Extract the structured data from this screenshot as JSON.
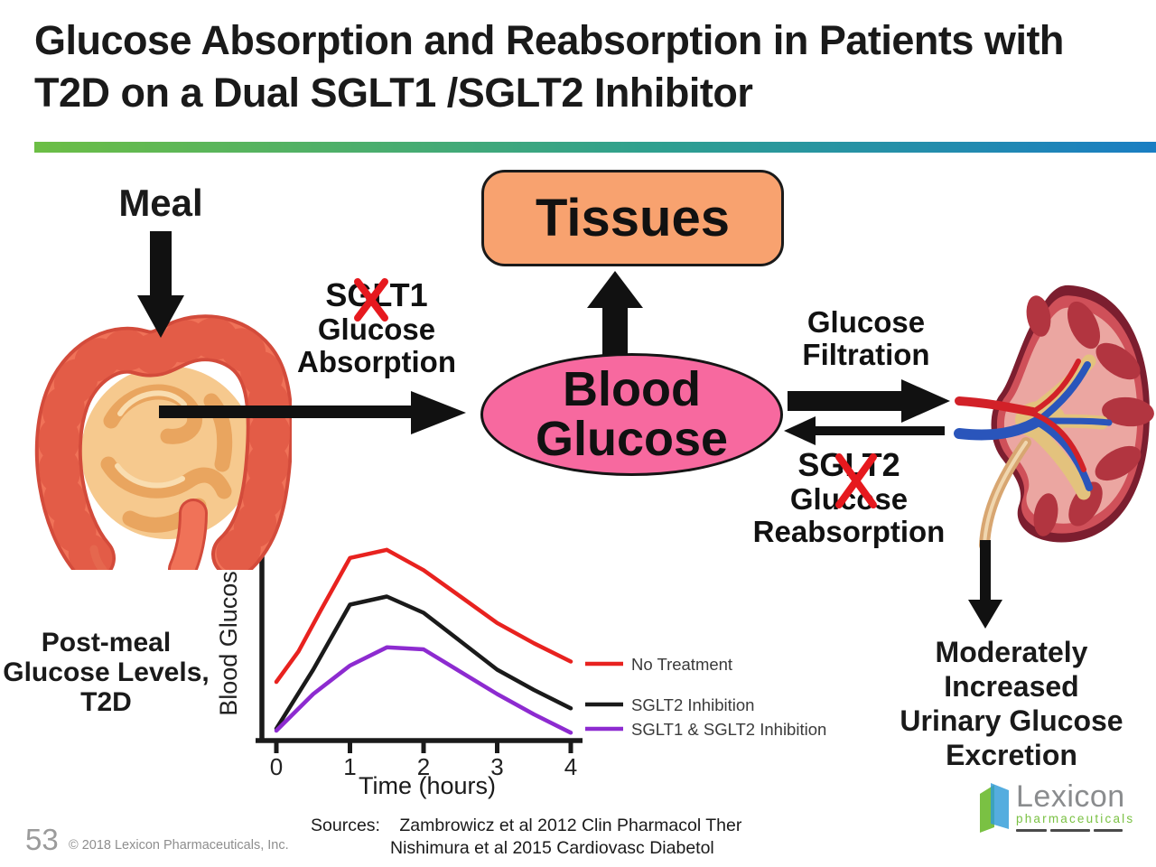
{
  "slide": {
    "title_line1": "Glucose Absorption and Reabsorption in Patients with",
    "title_line2": "T2D on a Dual SGLT1 /SGLT2 Inhibitor"
  },
  "diagram": {
    "meal": "Meal",
    "tissues": "Tissues",
    "blood_glucose_line1": "Blood",
    "blood_glucose_line2": "Glucose",
    "sglt1": {
      "name": "SGLT1",
      "line2": "Glucose",
      "line3": "Absorption",
      "crossed_out": true
    },
    "filtration": {
      "line1": "Glucose",
      "line2": "Filtration"
    },
    "sglt2": {
      "name": "SGLT2",
      "line2": "Glucose",
      "line3": "Reabsorption",
      "crossed_out": true
    },
    "outcome": {
      "line1": "Moderately",
      "line2": "Increased",
      "line3": "Urinary Glucose",
      "line4": "Excretion"
    }
  },
  "chart_caption": {
    "line1": "Post-meal",
    "line2": "Glucose Levels,",
    "line3": "T2D"
  },
  "chart_data": {
    "type": "line",
    "title": "Post-meal Glucose Levels, T2D",
    "xlabel": "Time (hours)",
    "ylabel": "Blood Glucose",
    "x_ticks": [
      0,
      1,
      2,
      3,
      4
    ],
    "xlim": [
      0,
      4
    ],
    "ylim": [
      0,
      100
    ],
    "y_scale_note": "y axis unlabeled (relative blood glucose)",
    "grid": false,
    "legend_position": "right of plot",
    "series": [
      {
        "name": "No Treatment",
        "color": "#e8221f",
        "x": [
          0,
          0.3,
          0.6,
          1,
          1.5,
          2,
          2.5,
          3,
          3.5,
          4
        ],
        "y": [
          28,
          43,
          63,
          89,
          93,
          83,
          70,
          57,
          47,
          38
        ]
      },
      {
        "name": "SGLT2 Inhibition",
        "color": "#1a1a1a",
        "x": [
          0,
          0.5,
          1,
          1.5,
          2,
          2.5,
          3,
          3.5,
          4
        ],
        "y": [
          5,
          34,
          66,
          70,
          62,
          48,
          34,
          24,
          15
        ]
      },
      {
        "name": "SGLT1 & SGLT2 Inhibition",
        "color": "#8d2bd0",
        "x": [
          0,
          0.5,
          1,
          1.5,
          2,
          2.5,
          3,
          3.5,
          4
        ],
        "y": [
          4,
          22,
          36,
          45,
          44,
          33,
          22,
          12,
          3
        ]
      }
    ]
  },
  "footer": {
    "page_number": "53",
    "copyright": "© 2018 Lexicon Pharmaceuticals, Inc.",
    "sources_label": "Sources:",
    "source_1": "Zambrowicz et al 2012 Clin Pharmacol Ther",
    "source_2": "Nishimura et al 2015 Cardiovasc Diabetol"
  },
  "logo": {
    "brand": "Lexicon",
    "subtitle": "pharmaceuticals"
  },
  "colors": {
    "title_text": "#1a1a1a",
    "accent_bar_left": "#6cbe45",
    "accent_bar_right": "#1a7ec3",
    "tissues_fill": "#f8a26f",
    "blood_glucose_fill": "#f7699f",
    "cross_out_red": "#e6191e",
    "arrow_black": "#111111",
    "footer_gray": "#919191",
    "logo_green": "#7ac143",
    "logo_gray": "#8a8c8e"
  }
}
